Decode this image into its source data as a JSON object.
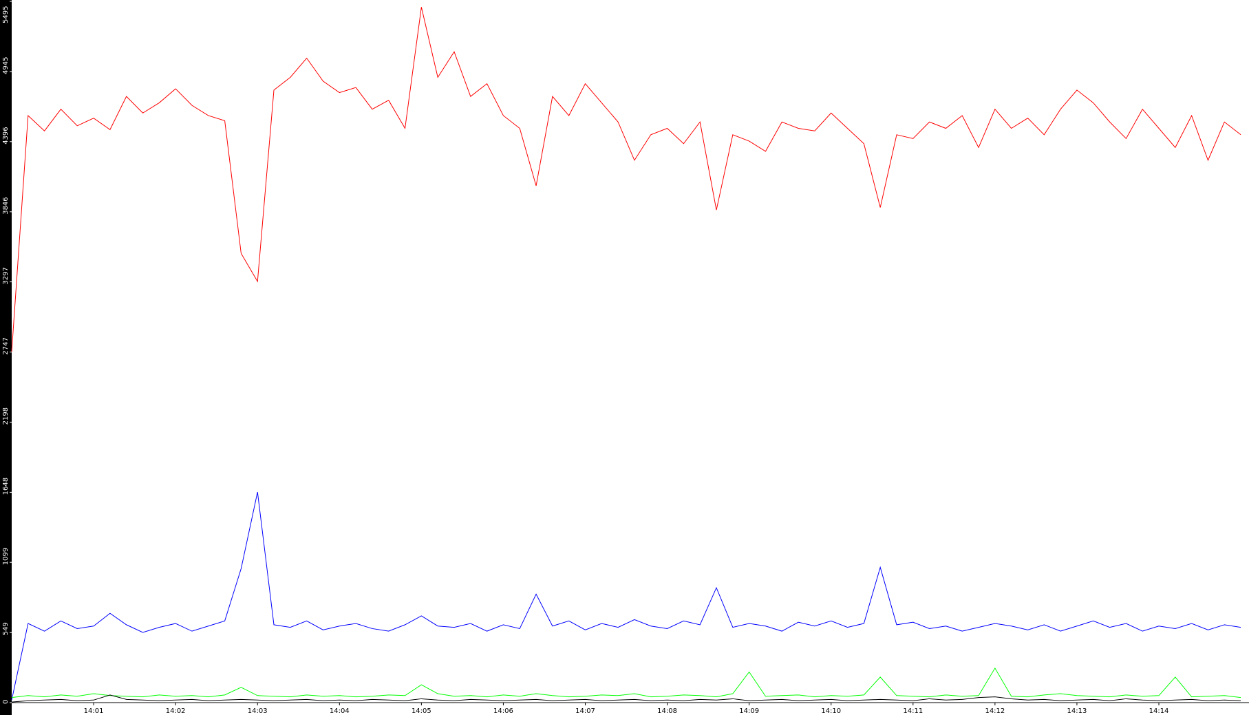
{
  "chart_data": {
    "type": "line",
    "x": [
      840,
      840.2,
      840.4,
      840.6,
      840.8,
      841,
      841.2,
      841.4,
      841.6,
      841.8,
      842,
      842.2,
      842.4,
      842.6,
      842.8,
      843,
      843.2,
      843.4,
      843.6,
      843.8,
      844,
      844.2,
      844.4,
      844.6,
      844.8,
      845,
      845.2,
      845.4,
      845.6,
      845.8,
      846,
      846.2,
      846.4,
      846.6,
      846.8,
      847,
      847.2,
      847.4,
      847.6,
      847.8,
      848,
      848.2,
      848.4,
      848.6,
      848.8,
      849,
      849.2,
      849.4,
      849.6,
      849.8,
      850,
      850.2,
      850.4,
      850.6,
      850.8,
      851,
      851.2,
      851.4,
      851.6,
      851.8,
      852,
      852.2,
      852.4,
      852.6,
      852.8,
      853,
      853.2,
      853.4,
      853.6,
      853.8,
      854,
      854.2,
      854.4,
      854.6,
      854.8,
      855
    ],
    "series": [
      {
        "color": "#ff0000",
        "values": [
          2750,
          4600,
          4480,
          4650,
          4520,
          4580,
          4490,
          4750,
          4620,
          4700,
          4810,
          4680,
          4600,
          4560,
          3520,
          3300,
          4800,
          4900,
          5050,
          4870,
          4780,
          4820,
          4650,
          4720,
          4500,
          5450,
          4900,
          5100,
          4750,
          4850,
          4600,
          4500,
          4050,
          4750,
          4600,
          4850,
          4700,
          4550,
          4250,
          4450,
          4500,
          4380,
          4550,
          3860,
          4450,
          4400,
          4320,
          4550,
          4500,
          4480,
          4620,
          4500,
          4380,
          3880,
          4450,
          4420,
          4550,
          4500,
          4600,
          4350,
          4650,
          4500,
          4580,
          4450,
          4650,
          4800,
          4700,
          4550,
          4420,
          4650,
          4500,
          4350,
          4600,
          4250,
          4550,
          4450
        ]
      },
      {
        "color": "#0000ff",
        "values": [
          20,
          620,
          560,
          640,
          580,
          600,
          700,
          610,
          550,
          590,
          620,
          560,
          600,
          640,
          1050,
          1650,
          610,
          590,
          640,
          570,
          600,
          620,
          580,
          560,
          610,
          680,
          600,
          590,
          620,
          560,
          610,
          580,
          850,
          600,
          640,
          570,
          620,
          590,
          650,
          600,
          580,
          640,
          610,
          900,
          590,
          620,
          600,
          560,
          630,
          600,
          640,
          590,
          620,
          1060,
          610,
          630,
          580,
          600,
          560,
          590,
          620,
          600,
          570,
          610,
          560,
          600,
          640,
          590,
          620,
          560,
          600,
          580,
          620,
          570,
          610,
          590
        ]
      },
      {
        "color": "#00ff00",
        "values": [
          40,
          55,
          45,
          60,
          50,
          70,
          55,
          50,
          45,
          60,
          50,
          55,
          45,
          60,
          120,
          55,
          50,
          45,
          60,
          50,
          55,
          45,
          50,
          60,
          55,
          140,
          70,
          50,
          55,
          45,
          60,
          50,
          70,
          55,
          45,
          50,
          60,
          55,
          70,
          45,
          50,
          60,
          55,
          45,
          70,
          240,
          50,
          55,
          60,
          45,
          55,
          50,
          60,
          200,
          55,
          50,
          45,
          60,
          50,
          55,
          270,
          50,
          45,
          60,
          70,
          55,
          50,
          45,
          60,
          50,
          55,
          200,
          45,
          50,
          55,
          40
        ]
      },
      {
        "color": "#000000",
        "values": [
          5,
          15,
          20,
          25,
          15,
          20,
          60,
          25,
          20,
          15,
          20,
          25,
          15,
          20,
          25,
          20,
          15,
          20,
          25,
          15,
          20,
          15,
          25,
          20,
          15,
          30,
          20,
          15,
          25,
          20,
          15,
          20,
          25,
          15,
          20,
          25,
          15,
          20,
          25,
          15,
          20,
          15,
          25,
          20,
          30,
          15,
          20,
          25,
          15,
          20,
          25,
          15,
          20,
          25,
          20,
          15,
          30,
          20,
          25,
          40,
          45,
          30,
          20,
          25,
          15,
          20,
          25,
          15,
          30,
          20,
          15,
          20,
          25,
          15,
          20,
          15
        ]
      }
    ],
    "xlim": [
      840,
      855.1
    ],
    "xticks": [
      {
        "value": 841,
        "label": "14:01"
      },
      {
        "value": 842,
        "label": "14:02"
      },
      {
        "value": 843,
        "label": "14:03"
      },
      {
        "value": 844,
        "label": "14:04"
      },
      {
        "value": 845,
        "label": "14:05"
      },
      {
        "value": 846,
        "label": "14:06"
      },
      {
        "value": 847,
        "label": "14:07"
      },
      {
        "value": 848,
        "label": "14:08"
      },
      {
        "value": 849,
        "label": "14:09"
      },
      {
        "value": 850,
        "label": "14:10"
      },
      {
        "value": 851,
        "label": "14:11"
      },
      {
        "value": 852,
        "label": "14:12"
      },
      {
        "value": 853,
        "label": "14:13"
      },
      {
        "value": 854,
        "label": "14:14"
      }
    ],
    "ylim": [
      0,
      5495
    ],
    "yticks": [
      0,
      549,
      1099,
      1648,
      2198,
      2747,
      3297,
      3846,
      4396,
      4945,
      5495
    ],
    "grid": false
  }
}
